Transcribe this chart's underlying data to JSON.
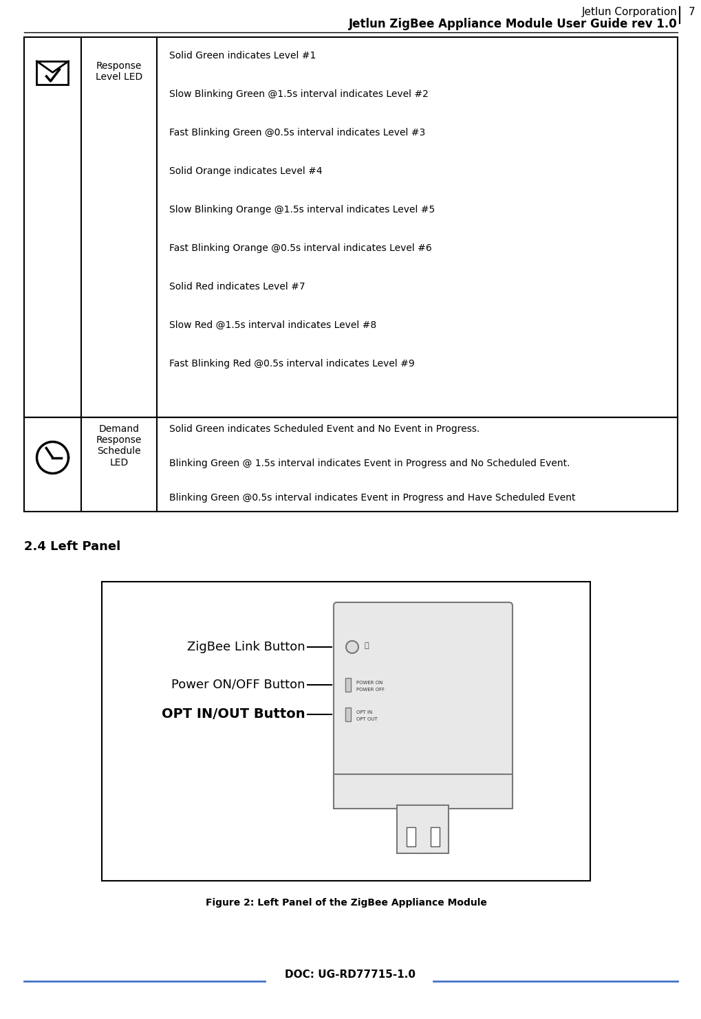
{
  "header_line1": "Jetlun Corporation",
  "header_line2": "Jetlun ZigBee Appliance Module User Guide rev 1.0",
  "header_page": "7",
  "footer_text": "DOC: UG-RD77715-1.0",
  "footer_line_color": "#4472c4",
  "row1_content": [
    "Solid Green indicates Level #1",
    "Slow Blinking Green @1.5s interval indicates Level #2",
    "Fast Blinking Green @0.5s interval indicates Level #3",
    "Solid Orange indicates Level #4",
    "Slow Blinking Orange @1.5s interval indicates Level #5",
    "Fast Blinking Orange @0.5s interval indicates Level #6",
    "Solid Red indicates Level #7",
    "Slow Red @1.5s interval indicates Level #8",
    "Fast Blinking Red @0.5s interval indicates Level #9"
  ],
  "row1_label": "Response\nLevel LED",
  "row2_label": "Demand\nResponse\nSchedule\nLED",
  "row2_content": [
    "Solid Green indicates Scheduled Event and No Event in Progress.",
    "Blinking Green @ 1.5s interval indicates Event in Progress and No Scheduled Event.",
    "Blinking Green @0.5s interval indicates Event in Progress and Have Scheduled Event"
  ],
  "section_title": "2.4 Left Panel",
  "figure_caption": "Figure 2: Left Panel of the ZigBee Appliance Module",
  "label_zigbee": "ZigBee Link Button",
  "label_power": "Power ON/OFF Button",
  "label_opt": "OPT IN/OUT Button",
  "bg_color": "#ffffff",
  "table_border_color": "#000000",
  "footer_line_color2": "#4472c4"
}
